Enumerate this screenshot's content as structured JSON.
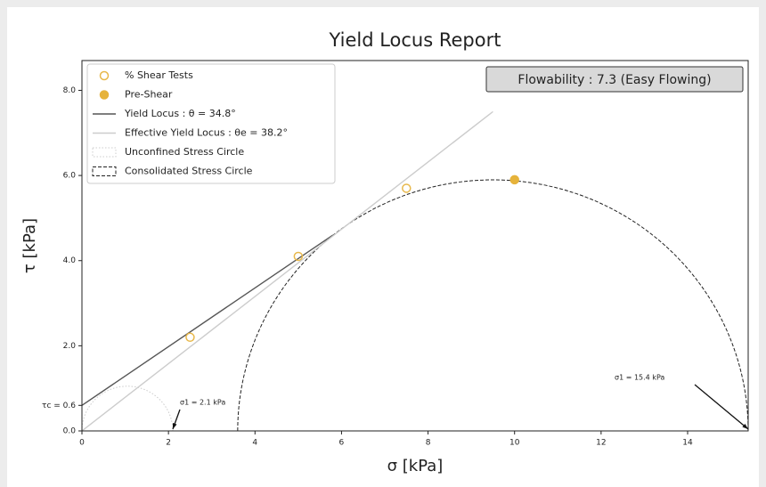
{
  "chart_data": {
    "type": "scatter",
    "title": "Yield Locus Report",
    "x_label": "σ [kPa]",
    "y_label": "τ [kPa]",
    "box_text": "Flowability : 7.3 (Easy Flowing)",
    "xlim": [
      0,
      15.4
    ],
    "ylim": [
      0,
      8.7
    ],
    "xticks": [
      0,
      2,
      4,
      6,
      8,
      10,
      12,
      14
    ],
    "yticks": [
      {
        "value": 0,
        "label": "0.0"
      },
      {
        "value": 0.6,
        "label": "τc = 0.6"
      },
      {
        "value": 2,
        "label": "2.0"
      },
      {
        "value": 4,
        "label": "4.0"
      },
      {
        "value": 6,
        "label": "6.0"
      },
      {
        "value": 8,
        "label": "8.0"
      }
    ],
    "legend": "upper left",
    "series": [
      {
        "name": "% Shear Tests",
        "type": "scatter",
        "marker": "open",
        "color": "#e8b84a",
        "x": [
          2.5,
          5,
          7.5
        ],
        "y": [
          2.2,
          4.1,
          5.7
        ]
      },
      {
        "name": "Pre-Shear",
        "type": "scatter",
        "marker": "filled",
        "color": "#e6b33b",
        "x": [
          10
        ],
        "y": [
          5.9
        ]
      },
      {
        "name": "Yield Locus : θ = 34.8°",
        "type": "line",
        "style": "solid",
        "color": "#555555",
        "x": [
          0,
          5.8
        ],
        "y": [
          0.6,
          4.6
        ]
      },
      {
        "name": "Effective Yield Locus : θe = 38.2°",
        "type": "line",
        "style": "solid",
        "color": "#cccccc",
        "x": [
          0,
          9.5
        ],
        "y": [
          0,
          7.5
        ]
      },
      {
        "name": "Unconfined Stress Circle",
        "type": "circle",
        "style": "dotted",
        "color": "#cccccc",
        "x": [
          0,
          2.1
        ]
      },
      {
        "name": "Consolidated Stress Circle",
        "type": "circle",
        "style": "dashed",
        "color": "#222222",
        "x": [
          3.6,
          15.4
        ]
      }
    ],
    "annotations": [
      {
        "text": "σ1 = 2.1 kPa",
        "x": 2.1,
        "y": 0
      },
      {
        "text": "σ1 = 15.4 kPa",
        "x": 15.4,
        "y": 0
      }
    ]
  }
}
